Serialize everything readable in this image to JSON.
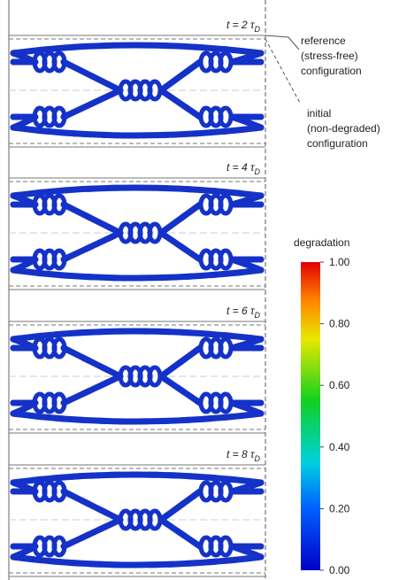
{
  "panels": [
    {
      "label": "t = 2 τ",
      "subscript": "D"
    },
    {
      "label": "t = 4 τ",
      "subscript": "D"
    },
    {
      "label": "t = 6 τ",
      "subscript": "D"
    },
    {
      "label": "t = 8 τ",
      "subscript": "D"
    }
  ],
  "annotations": {
    "reference": [
      "reference",
      "(stress-free)",
      "configuration"
    ],
    "initial": [
      "initial",
      "(non-degraded)",
      "configuration"
    ]
  },
  "colorbar": {
    "title": "degradation",
    "range": [
      0,
      1
    ],
    "ticks": [
      {
        "value": 1,
        "label": "1.00"
      },
      {
        "value": 0.8,
        "label": "0.80"
      },
      {
        "value": 0.6,
        "label": "0.60"
      },
      {
        "value": 0.4,
        "label": "0.40"
      },
      {
        "value": 0.2,
        "label": "0.20"
      },
      {
        "value": 0,
        "label": "0.00"
      }
    ]
  }
}
